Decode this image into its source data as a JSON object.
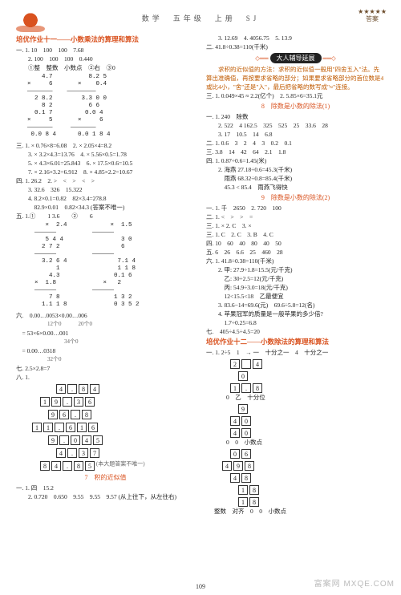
{
  "header": {
    "subject": "数学　五年级　上册　SJ",
    "stars": "★★★★★",
    "side_label": "答案"
  },
  "page_number": "109",
  "watermark": "MXQE.COM",
  "watermark2": "富案网",
  "left": {
    "title1": "培优作业十一——小数乘法的算理和算法",
    "l1": "一. 1. 10　100　100　7.68",
    "l2": "　　2. 100　100　100　0.440",
    "l3": "　　①整　整数　小数点　②右　③0",
    "calc1_a": "    4.7          8.2 5\n×     6       ×    0.4\n———————    ————————\n  2 8.2        3.3 0 0\n    8 2          6 6\n  0.1 7         0.0 4\n×     5       ×     6\n———————     ———————\n 0.0 8 4      0.0 1 8 4",
    "l4": "三. 1. × 0.76×8=6.08　2. × 2.05×4=8.2",
    "l5": "　　3. × 3.2×4.3=13.76　4. × 5.56×0.5=1.78",
    "l6": "　　5. × 4.3×6.01=25.843　6. × 17.5×0.6=10.5",
    "l7": "　　7. × 2.16×3.2=6.912　8. × 4.85×2.2=10.67",
    "l8": "四. 1. 26.2　2. >　<　>　<　>",
    "l9": "　　3. 32.6　326　15.322",
    "l10": "　　4. 8.2×0.1=0.82　82×3.4=278.8",
    "l11": "　　　82.9×0.01　0.82×34.3 (答案不唯一)",
    "l12": "五. 1.①　　1 3.6　　②　　6",
    "calc2": "     ×  2.4            ×  1.5\n  ——————          ——————\n     5 4 4                3 0\n    2 7 2                 6\n  ——————          ——————\n    3.2 6 4              7.1 4\n        1                1 1 8\n      4.3               0.1 6\n  ×  1.8             ×   2\n  ——————          ——————\n      7 8               1 3 2\n    1.1 1 8             0 3 5 2",
    "l13": "六.　0.00…0053×0.00…006",
    "l13b": "　　　12个0　　　20个0",
    "l13c": "　= 53×6×0.00…001",
    "l13d": "　　　　　　34个0",
    "l13e": "　= 0.00…0318",
    "l13f": "　　　32个0",
    "l14": "七. 2.5×2.8=7",
    "grid_intro": "八. 1.",
    "g1": [
      "4",
      ".",
      "8",
      "4"
    ],
    "g2": [
      "1",
      "9",
      ".",
      "3",
      "6"
    ],
    "g3": [
      "9",
      "6",
      ".",
      "8"
    ],
    "g4": [
      "1",
      "1",
      ".",
      "6",
      "1",
      "6"
    ],
    "g5": [
      "9",
      ".",
      "0",
      "4",
      "5"
    ],
    "g6": [
      "4",
      ".",
      "3",
      "7"
    ],
    "g7": [
      "8",
      "4",
      ".",
      "8",
      "5"
    ],
    "g_note": "(本大题答案不唯一)",
    "title2": "7　积的近似值",
    "b1": "一. 1. 四　15.2",
    "b2": "　　2. 0.720　0.650　9.55　9.55　9.57 (从上往下，从左往右)"
  },
  "right": {
    "r1": "　　3. 12.69　4. 4056.75　5. 13.9",
    "r2": "二. 41.8÷0.38=110(千米)",
    "badge": "大人辅导延展",
    "tut1": "　　求积的近似值的方法：求积的近似值一般用\"四舍五入\"法。先算出准确值，再按要求省略的部分；如果要求省略部分的首位数是4或比4小，\"舍\"还是\"入\"，最后把省略的数写成\"≈\"连接。",
    "r3": "三. 1. 0.049×45 ≈ 2.2(亿个)　2. 5.85×6=35.1元",
    "title3": "8　除数是小数的除法(1)",
    "r4": "一. 1. 240　除数",
    "r5": "　　2. 522　4 162.5　325　525　25　33.6　28",
    "r6": "　　3. 17　10.5　14　6.8",
    "r7": "二. 1. 0.6　3　2　4　3　0.2　0.1",
    "r8": "三. 3.8　14　42　64　2.1　1.8",
    "r9": "四. 1. 0.87÷0.6=1.45(米)",
    "r10": "　　2. 海燕 27.18÷0.6=45.3(千米)",
    "r11": "　　　雨燕 68.32÷0.8=85.4(千米)",
    "r12": "　　　45.3 < 85.4　雨燕飞得快",
    "title4": "9　除数是小数的除法(2)",
    "r13": "一. 1. 千　2650　2. 720　100",
    "r14": "二. 1. <　>　>　=",
    "r15": "三. 1. × 2. C　3. ×",
    "r16": "三. 1. C　2. C　3. B　4. C",
    "r17": "四. 10　60　40　80　40　50",
    "r18": "五. 6　26　6.6　25　460　28",
    "r19": "六. 1. 41.8÷0.38=110(千米)",
    "r20": "　　2. 甲: 27.9÷1.8=15.5(元/千克)",
    "r21": "　　　乙: 30÷2.5=12(元/千克)",
    "r22": "　　　丙: 54.9÷3.0=18(元/千克)",
    "r23": "　　　12<15.5<18　乙最便宜",
    "r24": "　　3. 83.6−14=69.6(元)　69.6÷5.8=12(名)",
    "r25": "　　4. 苹果冠军的质量是一般苹果的多少倍?",
    "r26": "　　　1.7÷0.25=6.8",
    "r27": "七.　405÷4.5÷4.5=20",
    "title5": "培优作业十二——小数除法的算理和算法",
    "r28": "一. 1. 2÷5　1　→ 一　十分之一　4　十分之一",
    "grid_r1": [
      "2",
      "",
      "4"
    ],
    "grid_r2": [
      "0"
    ],
    "grid_r3": [
      "1",
      ".",
      "8"
    ],
    "r29": "　　0　乙　十分位",
    "grid_r4": [
      "9"
    ],
    "grid_r5": [
      "4",
      "0"
    ],
    "grid_r6": [
      "4",
      "0"
    ],
    "r30": "　　0　0　小数点",
    "grid_r7": [
      "0",
      "6"
    ],
    "grid_r8": [
      "4",
      "9",
      "8"
    ],
    "grid_r9": [
      "4",
      "8"
    ],
    "grid_r10": [
      "1",
      "8"
    ],
    "grid_r11": [
      "1",
      "8"
    ],
    "r31": "整数　对齐　0　0　小数点"
  }
}
